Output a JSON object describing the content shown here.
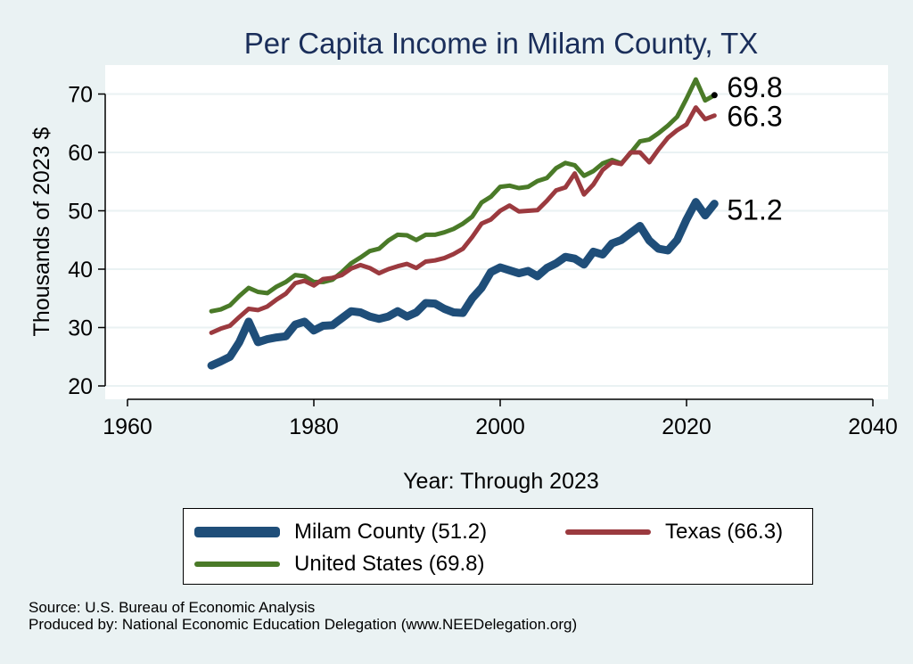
{
  "chart_data": {
    "type": "line",
    "title": "Per Capita Income in Milam County, TX",
    "xlabel": "Year: Through 2023",
    "ylabel": "Thousands of 2023 $",
    "xlim": [
      1960,
      2040
    ],
    "ylim": [
      20,
      75
    ],
    "xticks": [
      1960,
      1980,
      2000,
      2020,
      2040
    ],
    "yticks": [
      20,
      30,
      40,
      50,
      60,
      70
    ],
    "grid": "horizontal",
    "legend_position": "bottom",
    "x": [
      1969,
      1970,
      1971,
      1972,
      1973,
      1974,
      1975,
      1976,
      1977,
      1978,
      1979,
      1980,
      1981,
      1982,
      1983,
      1984,
      1985,
      1986,
      1987,
      1988,
      1989,
      1990,
      1991,
      1992,
      1993,
      1994,
      1995,
      1996,
      1997,
      1998,
      1999,
      2000,
      2001,
      2002,
      2003,
      2004,
      2005,
      2006,
      2007,
      2008,
      2009,
      2010,
      2011,
      2012,
      2013,
      2014,
      2015,
      2016,
      2017,
      2018,
      2019,
      2020,
      2021,
      2022,
      2023
    ],
    "series": [
      {
        "name": "Milam County (51.2)",
        "color": "#1f4e79",
        "values": [
          23.5,
          24.2,
          25.0,
          27.5,
          31.0,
          27.5,
          28.0,
          28.3,
          28.5,
          30.5,
          31.0,
          29.5,
          30.3,
          30.4,
          31.6,
          32.8,
          32.6,
          31.9,
          31.5,
          31.9,
          32.8,
          31.9,
          32.6,
          34.2,
          34.1,
          33.2,
          32.6,
          32.5,
          35.0,
          36.8,
          39.5,
          40.3,
          39.8,
          39.3,
          39.7,
          38.8,
          40.2,
          41.0,
          42.1,
          41.8,
          40.8,
          43.0,
          42.5,
          44.4,
          45.0,
          46.2,
          47.4,
          44.9,
          43.5,
          43.2,
          45.0,
          48.5,
          51.5,
          49.2,
          51.2
        ],
        "end_label": "51.2"
      },
      {
        "name": "Texas (66.3)",
        "color": "#9b3a3f",
        "values": [
          29.1,
          29.8,
          30.3,
          31.8,
          33.2,
          33.0,
          33.6,
          34.8,
          35.8,
          37.6,
          38.0,
          37.2,
          38.3,
          38.5,
          39.0,
          40.1,
          40.7,
          40.2,
          39.3,
          40.0,
          40.5,
          40.9,
          40.2,
          41.3,
          41.5,
          41.9,
          42.6,
          43.5,
          45.5,
          47.8,
          48.5,
          50.0,
          50.9,
          49.9,
          50.0,
          50.1,
          51.7,
          53.5,
          54.0,
          56.4,
          52.8,
          54.5,
          57.0,
          58.3,
          58.0,
          60.0,
          60.0,
          58.3,
          60.5,
          62.5,
          63.8,
          64.8,
          67.7,
          65.7,
          66.3
        ],
        "end_label": "66.3"
      },
      {
        "name": "United States (69.8)",
        "color": "#4a7a28",
        "values": [
          32.8,
          33.1,
          33.8,
          35.4,
          36.8,
          36.1,
          35.9,
          37.0,
          37.8,
          39.0,
          38.8,
          37.8,
          37.8,
          38.2,
          39.5,
          41.0,
          42.0,
          43.1,
          43.5,
          44.9,
          45.9,
          45.8,
          45.0,
          45.9,
          45.9,
          46.3,
          46.9,
          47.8,
          49.0,
          51.4,
          52.4,
          54.1,
          54.3,
          53.9,
          54.1,
          55.1,
          55.6,
          57.3,
          58.2,
          57.8,
          56.0,
          56.8,
          58.1,
          58.7,
          58.1,
          59.9,
          61.9,
          62.2,
          63.3,
          64.6,
          66.1,
          69.2,
          72.5,
          68.9,
          69.8
        ],
        "end_label": "69.8"
      }
    ],
    "legend": [
      {
        "label": "Milam County (51.2)",
        "color": "#1f4e79",
        "weight": "thick"
      },
      {
        "label": "Texas (66.3)",
        "color": "#9b3a3f",
        "weight": "medium"
      },
      {
        "label": "United States (69.8)",
        "color": "#4a7a28",
        "weight": "medium"
      }
    ]
  },
  "footer": {
    "source": "Source: U.S. Bureau of Economic Analysis",
    "produced_by": "Produced by: National Economic Education Delegation (www.NEEDelegation.org)"
  }
}
